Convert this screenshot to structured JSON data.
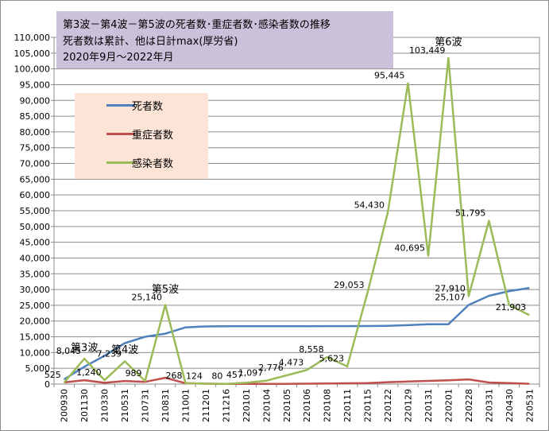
{
  "chart_data": {
    "type": "line",
    "title_lines": [
      "第3波－第4波－第5波の死者数･重症者数･感染者数の推移",
      "死者数は累計、他は日計max(厚労省)",
      "2020年9月～2022年月"
    ],
    "categories": [
      "200930",
      "201130",
      "210330",
      "210531",
      "210731",
      "210831",
      "211001",
      "211201",
      "211216",
      "220101",
      "220104",
      "220105",
      "220106",
      "220108",
      "220111",
      "220115",
      "220122",
      "220129",
      "220131",
      "220201",
      "220228",
      "220331",
      "220430",
      "220531"
    ],
    "series": [
      {
        "name": "死者数",
        "color": "#4f81bd",
        "values": [
          1500,
          5500,
          9000,
          13000,
          15000,
          16000,
          18000,
          18300,
          18350,
          18350,
          18350,
          18360,
          18370,
          18380,
          18400,
          18420,
          18500,
          18700,
          19000,
          19000,
          25107,
          28000,
          29500,
          30500
        ]
      },
      {
        "name": "重症者数",
        "color": "#c0504d",
        "values": [
          525,
          1240,
          400,
          989,
          700,
          2000,
          268,
          124,
          80,
          57,
          60,
          70,
          120,
          200,
          260,
          300,
          600,
          800,
          1000,
          1200,
          1500,
          500,
          300,
          100
        ]
      },
      {
        "name": "感染者数",
        "color": "#9bbb59",
        "values": [
          525,
          8045,
          1240,
          7239,
          989,
          25140,
          268,
          124,
          80,
          457,
          1097,
          2776,
          4473,
          8558,
          5623,
          29053,
          54430,
          95445,
          40695,
          103449,
          27910,
          51795,
          25107,
          21903
        ]
      }
    ],
    "data_labels": [
      {
        "text": "525",
        "series": "感染者数",
        "index": 0
      },
      {
        "text": "8,045",
        "series": "感染者数",
        "index": 1
      },
      {
        "text": "1,240",
        "series": "感染者数",
        "index": 2
      },
      {
        "text": "7,239",
        "series": "感染者数",
        "index": 3
      },
      {
        "text": "989",
        "series": "感染者数",
        "index": 4
      },
      {
        "text": "25,140",
        "series": "感染者数",
        "index": 5
      },
      {
        "text": "268",
        "series": "感染者数",
        "index": 6
      },
      {
        "text": "124",
        "series": "感染者数",
        "index": 7
      },
      {
        "text": "80",
        "series": "感染者数",
        "index": 8
      },
      {
        "text": "457",
        "series": "感染者数",
        "index": 9
      },
      {
        "text": "1,097",
        "series": "感染者数",
        "index": 10
      },
      {
        "text": "2,776",
        "series": "感染者数",
        "index": 11
      },
      {
        "text": "4,473",
        "series": "感染者数",
        "index": 12
      },
      {
        "text": "8,558",
        "series": "感染者数",
        "index": 13
      },
      {
        "text": "5,623",
        "series": "感染者数",
        "index": 14
      },
      {
        "text": "29,053",
        "series": "感染者数",
        "index": 15
      },
      {
        "text": "54,430",
        "series": "感染者数",
        "index": 16
      },
      {
        "text": "95,445",
        "series": "感染者数",
        "index": 17
      },
      {
        "text": "40,695",
        "series": "感染者数",
        "index": 18
      },
      {
        "text": "103,449",
        "series": "感染者数",
        "index": 19
      },
      {
        "text": "27,910",
        "series": "感染者数",
        "index": 20
      },
      {
        "text": "51,795",
        "series": "感染者数",
        "index": 21
      },
      {
        "text": "25,107",
        "series": "死者数",
        "index": 20
      },
      {
        "text": "21,903",
        "series": "感染者数",
        "index": 23
      }
    ],
    "annotations": [
      {
        "text": "第3波",
        "index": 1,
        "value": 10500
      },
      {
        "text": "第4波",
        "index": 3,
        "value": 9800
      },
      {
        "text": "第5波",
        "index": 5,
        "value": 29000
      },
      {
        "text": "第6波",
        "index": 19,
        "value": 107500
      }
    ],
    "ylim": [
      0,
      110000
    ],
    "ytick_step": 5000,
    "legend_position": "upper-left",
    "grid": true
  }
}
